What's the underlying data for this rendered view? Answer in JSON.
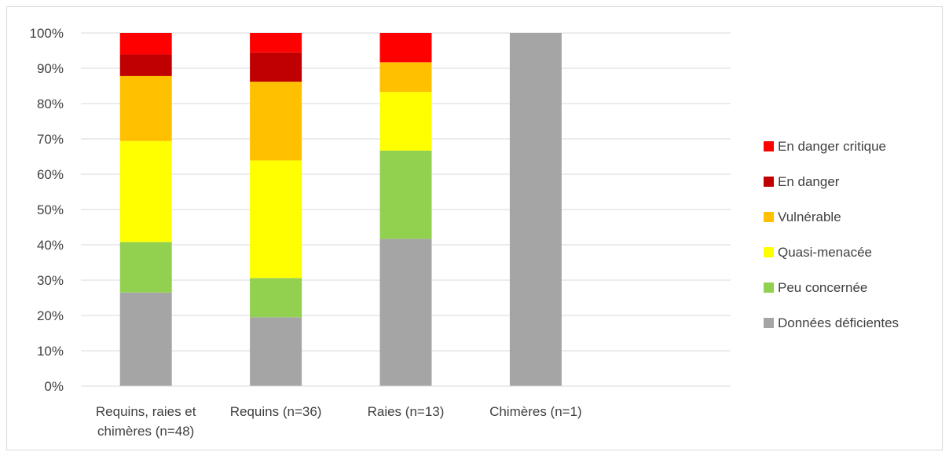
{
  "chart_data": {
    "type": "bar",
    "stacked": true,
    "percent": true,
    "categories": [
      [
        "Requins, raies et",
        "chimères (n=48)"
      ],
      [
        "Requins (n=36)"
      ],
      [
        "Raies (n=13)"
      ],
      [
        "Chimères (n=1)"
      ]
    ],
    "ylim": [
      0,
      100
    ],
    "yticks": [
      "0%",
      "10%",
      "20%",
      "30%",
      "40%",
      "50%",
      "60%",
      "70%",
      "80%",
      "90%",
      "100%"
    ],
    "grid": true,
    "legend_position": "right",
    "series": [
      {
        "name": "Données déficientes",
        "color": "#a5a5a5",
        "values": [
          26.5,
          19.5,
          41.7,
          100
        ]
      },
      {
        "name": "Peu concernée",
        "color": "#92d050",
        "values": [
          14.3,
          11.1,
          25.0,
          0
        ]
      },
      {
        "name": "Quasi-menacée",
        "color": "#ffff00",
        "values": [
          28.6,
          33.3,
          16.6,
          0
        ]
      },
      {
        "name": "Vulnérable",
        "color": "#ffc000",
        "values": [
          18.4,
          22.3,
          8.4,
          0
        ]
      },
      {
        "name": "En danger",
        "color": "#c00000",
        "values": [
          6.1,
          8.3,
          0,
          0
        ]
      },
      {
        "name": "En danger critique",
        "color": "#ff0000",
        "values": [
          6.1,
          5.5,
          8.3,
          0
        ]
      }
    ]
  }
}
